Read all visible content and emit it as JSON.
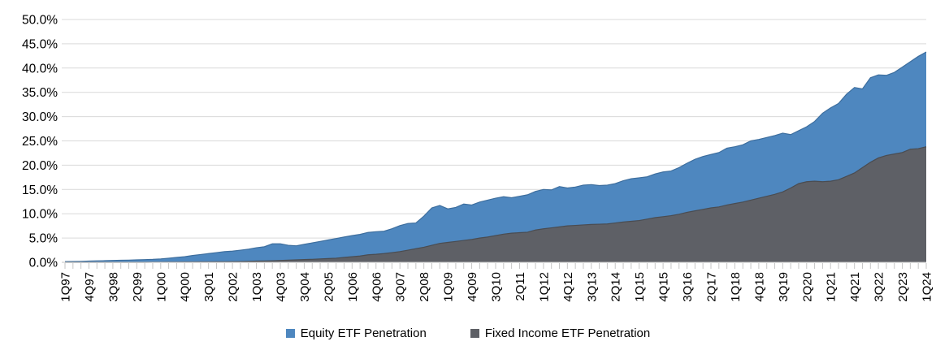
{
  "chart_data": {
    "type": "area",
    "title": "",
    "subtitle": "",
    "xlabel": "",
    "ylabel": "",
    "ylim": [
      0,
      50
    ],
    "y_step": 5,
    "grid": "horizontal",
    "legend_position": "bottom",
    "overlap_mode": "overlaid-not-stacked",
    "y_tick_labels": [
      "0.0%",
      "5.0%",
      "10.0%",
      "15.0%",
      "20.0%",
      "25.0%",
      "30.0%",
      "35.0%",
      "40.0%",
      "45.0%",
      "50.0%"
    ],
    "x_tick_label_every": 3,
    "visible_x_tick_labels": [
      "1Q97",
      "4Q97",
      "3Q98",
      "2Q99",
      "1Q00",
      "4Q00",
      "3Q01",
      "2Q02",
      "1Q03",
      "4Q03",
      "3Q04",
      "2Q05",
      "1Q06",
      "4Q06",
      "3Q07",
      "2Q08",
      "1Q09",
      "4Q09",
      "3Q10",
      "2Q11",
      "1Q12",
      "4Q12",
      "3Q13",
      "2Q14",
      "1Q15",
      "4Q15",
      "3Q16",
      "2Q17",
      "1Q18",
      "4Q18",
      "3Q19",
      "2Q20",
      "1Q21",
      "4Q21",
      "3Q22",
      "2Q23",
      "1Q24"
    ],
    "categories": [
      "1Q97",
      "2Q97",
      "3Q97",
      "4Q97",
      "1Q98",
      "2Q98",
      "3Q98",
      "4Q98",
      "1Q99",
      "2Q99",
      "3Q99",
      "4Q99",
      "1Q00",
      "2Q00",
      "3Q00",
      "4Q00",
      "1Q01",
      "2Q01",
      "3Q01",
      "4Q01",
      "1Q02",
      "2Q02",
      "3Q02",
      "4Q02",
      "1Q03",
      "2Q03",
      "3Q03",
      "4Q03",
      "1Q04",
      "2Q04",
      "3Q04",
      "4Q04",
      "1Q05",
      "2Q05",
      "3Q05",
      "4Q05",
      "1Q06",
      "2Q06",
      "3Q06",
      "4Q06",
      "1Q07",
      "2Q07",
      "3Q07",
      "4Q07",
      "1Q08",
      "2Q08",
      "3Q08",
      "4Q08",
      "1Q09",
      "2Q09",
      "3Q09",
      "4Q09",
      "1Q10",
      "2Q10",
      "3Q10",
      "4Q10",
      "1Q11",
      "2Q11",
      "3Q11",
      "4Q11",
      "1Q12",
      "2Q12",
      "3Q12",
      "4Q12",
      "1Q13",
      "2Q13",
      "3Q13",
      "4Q13",
      "1Q14",
      "2Q14",
      "3Q14",
      "4Q14",
      "1Q15",
      "2Q15",
      "3Q15",
      "4Q15",
      "1Q16",
      "2Q16",
      "3Q16",
      "4Q16",
      "1Q17",
      "2Q17",
      "3Q17",
      "4Q17",
      "1Q18",
      "2Q18",
      "3Q18",
      "4Q18",
      "1Q19",
      "2Q19",
      "3Q19",
      "4Q19",
      "1Q20",
      "2Q20",
      "3Q20",
      "4Q20",
      "1Q21",
      "2Q21",
      "3Q21",
      "4Q21",
      "1Q22",
      "2Q22",
      "3Q22",
      "4Q22",
      "1Q23",
      "2Q23",
      "3Q23",
      "4Q23",
      "1Q24"
    ],
    "series": [
      {
        "name": "Equity ETF Penetration",
        "color": "#4E87BF",
        "edge_color": "#3D6E9E",
        "values": [
          0.15,
          0.18,
          0.2,
          0.25,
          0.3,
          0.33,
          0.38,
          0.42,
          0.45,
          0.5,
          0.55,
          0.6,
          0.7,
          0.85,
          1.0,
          1.15,
          1.4,
          1.6,
          1.8,
          2.0,
          2.2,
          2.3,
          2.5,
          2.7,
          3.0,
          3.2,
          3.8,
          3.8,
          3.5,
          3.4,
          3.7,
          4.0,
          4.3,
          4.6,
          4.9,
          5.2,
          5.5,
          5.75,
          6.15,
          6.3,
          6.4,
          6.9,
          7.55,
          8.0,
          8.1,
          9.5,
          11.2,
          11.7,
          11.0,
          11.3,
          12.0,
          11.8,
          12.4,
          12.8,
          13.2,
          13.5,
          13.3,
          13.6,
          13.9,
          14.6,
          15.0,
          14.9,
          15.6,
          15.3,
          15.5,
          15.9,
          16.0,
          15.8,
          15.9,
          16.2,
          16.8,
          17.2,
          17.4,
          17.6,
          18.2,
          18.6,
          18.8,
          19.5,
          20.4,
          21.2,
          21.8,
          22.2,
          22.6,
          23.5,
          23.8,
          24.2,
          25.0,
          25.3,
          25.7,
          26.1,
          26.6,
          26.3,
          27.1,
          27.9,
          29.0,
          30.7,
          31.8,
          32.7,
          34.6,
          36.0,
          35.7,
          38.0,
          38.6,
          38.5,
          39.1,
          40.2,
          41.3,
          42.4,
          43.3
        ]
      },
      {
        "name": "Fixed Income ETF Penetration",
        "color": "#5E6066",
        "edge_color": "#4A4C51",
        "values": [
          0,
          0,
          0,
          0,
          0,
          0,
          0,
          0,
          0,
          0,
          0,
          0.02,
          0.03,
          0.04,
          0.05,
          0.06,
          0.07,
          0.08,
          0.09,
          0.1,
          0.1,
          0.12,
          0.15,
          0.2,
          0.25,
          0.28,
          0.32,
          0.38,
          0.45,
          0.5,
          0.56,
          0.62,
          0.7,
          0.78,
          0.85,
          1.0,
          1.15,
          1.3,
          1.55,
          1.65,
          1.8,
          2.0,
          2.2,
          2.5,
          2.8,
          3.1,
          3.5,
          3.9,
          4.1,
          4.3,
          4.5,
          4.7,
          5.0,
          5.2,
          5.5,
          5.8,
          6.0,
          6.1,
          6.2,
          6.65,
          6.9,
          7.1,
          7.3,
          7.5,
          7.6,
          7.7,
          7.8,
          7.85,
          7.9,
          8.1,
          8.3,
          8.45,
          8.6,
          8.9,
          9.2,
          9.4,
          9.6,
          9.9,
          10.3,
          10.6,
          10.9,
          11.2,
          11.4,
          11.8,
          12.1,
          12.4,
          12.8,
          13.2,
          13.6,
          14.0,
          14.5,
          15.3,
          16.2,
          16.6,
          16.7,
          16.6,
          16.7,
          17.0,
          17.7,
          18.4,
          19.5,
          20.6,
          21.5,
          22.0,
          22.3,
          22.6,
          23.3,
          23.4,
          23.8
        ]
      }
    ],
    "axis_colors": {
      "gridline": "#D9D9D9",
      "axis_line": "#C6C6C6",
      "tick": "#C6C6C6",
      "label_text": "#000000"
    }
  },
  "legend": {
    "items": [
      {
        "label": "Equity ETF Penetration",
        "color": "#4E87BF"
      },
      {
        "label": "Fixed Income ETF Penetration",
        "color": "#5E6066"
      }
    ]
  }
}
